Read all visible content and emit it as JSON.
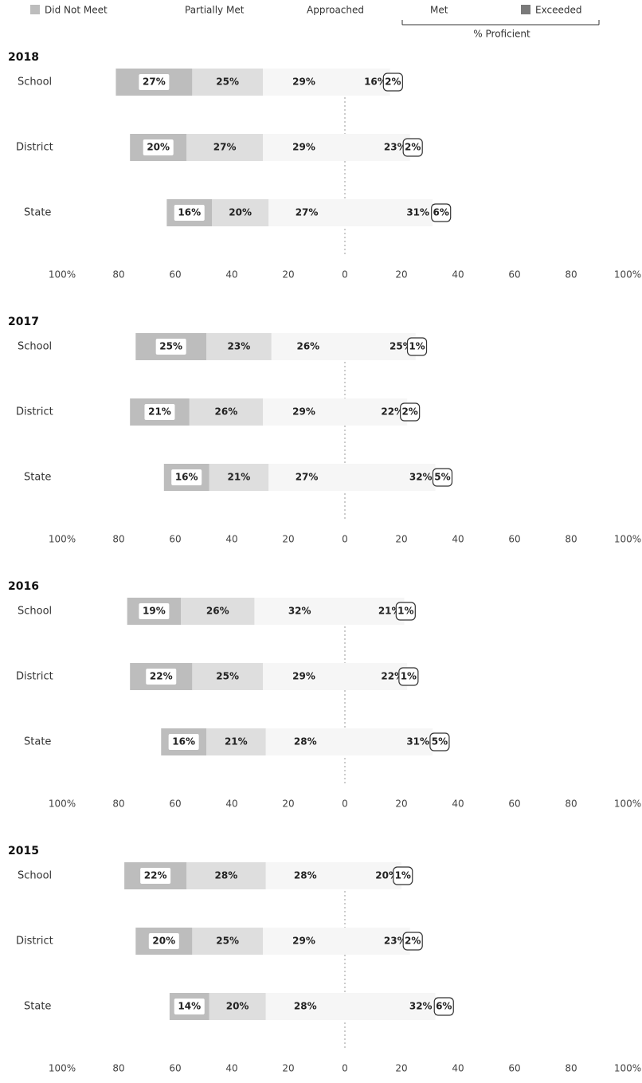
{
  "chart_data": {
    "type": "diverging_bar",
    "diverging_split": 3,
    "legend_group_label": "% Proficient",
    "series": [
      {
        "name": "Did Not Meet",
        "color": "#bdbdbd"
      },
      {
        "name": "Partially Met",
        "color": "#dedede"
      },
      {
        "name": "Approached",
        "color": "#f6f6f6"
      },
      {
        "name": "Met",
        "color": "#f6f6f6"
      },
      {
        "name": "Exceeded",
        "color": "#7a7a7a"
      }
    ],
    "xlim": [
      -100,
      100
    ],
    "xticks": [
      {
        "value": -100,
        "label": "100%"
      },
      {
        "value": -80,
        "label": "80"
      },
      {
        "value": -60,
        "label": "60"
      },
      {
        "value": -40,
        "label": "40"
      },
      {
        "value": -20,
        "label": "20"
      },
      0,
      20,
      40,
      60,
      80,
      {
        "value": 100,
        "label": "100%"
      }
    ],
    "panels": [
      {
        "title": "2018",
        "categories": [
          "School",
          "District",
          "State"
        ],
        "series": [
          {
            "values": [
              27,
              20,
              16
            ],
            "value_labels": [
              "27%",
              "20%",
              "16%"
            ]
          },
          {
            "values": [
              25,
              27,
              20
            ],
            "value_labels": [
              "25%",
              "27%",
              "20%"
            ]
          },
          {
            "values": [
              29,
              29,
              27
            ],
            "value_labels": [
              "29%",
              "29%",
              "27%"
            ]
          },
          {
            "values": [
              16,
              23,
              31
            ],
            "value_labels": [
              "16%",
              "23%",
              "31%"
            ]
          },
          {
            "values": [
              2,
              2,
              6
            ],
            "value_labels": [
              "2%",
              "2%",
              "6%"
            ]
          }
        ]
      },
      {
        "title": "2017",
        "categories": [
          "School",
          "District",
          "State"
        ],
        "series": [
          {
            "values": [
              25,
              21,
              16
            ],
            "value_labels": [
              "25%",
              "21%",
              "16%"
            ]
          },
          {
            "values": [
              23,
              26,
              21
            ],
            "value_labels": [
              "23%",
              "26%",
              "21%"
            ]
          },
          {
            "values": [
              26,
              29,
              27
            ],
            "value_labels": [
              "26%",
              "29%",
              "27%"
            ]
          },
          {
            "values": [
              25,
              22,
              32
            ],
            "value_labels": [
              "25%",
              "22%",
              "32%"
            ]
          },
          {
            "values": [
              1,
              2,
              5
            ],
            "value_labels": [
              "1%",
              "2%",
              "5%"
            ]
          }
        ]
      },
      {
        "title": "2016",
        "categories": [
          "School",
          "District",
          "State"
        ],
        "series": [
          {
            "values": [
              19,
              22,
              16
            ],
            "value_labels": [
              "19%",
              "22%",
              "16%"
            ]
          },
          {
            "values": [
              26,
              25,
              21
            ],
            "value_labels": [
              "26%",
              "25%",
              "21%"
            ]
          },
          {
            "values": [
              32,
              29,
              28
            ],
            "value_labels": [
              "32%",
              "29%",
              "28%"
            ]
          },
          {
            "values": [
              21,
              22,
              31
            ],
            "value_labels": [
              "21%",
              "22%",
              "31%"
            ]
          },
          {
            "values": [
              1,
              1,
              5
            ],
            "value_labels": [
              "1%",
              "1%",
              "5%"
            ]
          }
        ]
      },
      {
        "title": "2015",
        "categories": [
          "School",
          "District",
          "State"
        ],
        "series": [
          {
            "values": [
              22,
              20,
              14
            ],
            "value_labels": [
              "22%",
              "20%",
              "14%"
            ]
          },
          {
            "values": [
              28,
              25,
              20
            ],
            "value_labels": [
              "28%",
              "25%",
              "20%"
            ]
          },
          {
            "values": [
              28,
              29,
              28
            ],
            "value_labels": [
              "28%",
              "29%",
              "28%"
            ]
          },
          {
            "values": [
              20,
              23,
              32
            ],
            "value_labels": [
              "20%",
              "23%",
              "32%"
            ]
          },
          {
            "values": [
              1,
              2,
              6
            ],
            "value_labels": [
              "1%",
              "2%",
              "6%"
            ]
          }
        ]
      }
    ]
  }
}
